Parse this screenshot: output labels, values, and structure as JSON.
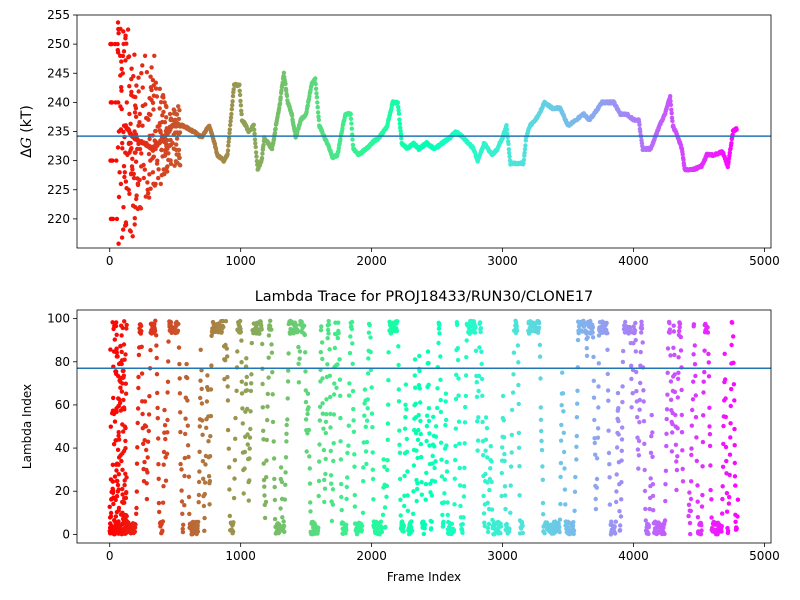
{
  "chart_data": [
    {
      "type": "scatter",
      "title": "",
      "xlabel": "",
      "ylabel": "ΔG (kT)",
      "ylabel_parts": {
        "delta": "Δ",
        "symbol": "G",
        "unit": " (kT)"
      },
      "xlim": [
        -250,
        5050
      ],
      "ylim": [
        215,
        255
      ],
      "xticks": [
        0,
        1000,
        2000,
        3000,
        4000,
        5000
      ],
      "yticks": [
        220,
        225,
        230,
        235,
        240,
        245,
        250,
        255
      ],
      "colormap": "rainbow (reversed: early frames red, late frames violet)",
      "hline": {
        "y": 234.2,
        "color": "#1f77b4"
      },
      "frame_range": [
        0,
        4800
      ],
      "series": [
        {
          "trace_points": [
            [
              0,
              230
            ],
            [
              60,
              230
            ],
            [
              70,
              240
            ],
            [
              100,
              240
            ],
            [
              120,
              236
            ],
            [
              180,
              234
            ],
            [
              260,
              233
            ],
            [
              330,
              232
            ],
            [
              420,
              234
            ],
            [
              480,
              236
            ],
            [
              560,
              236
            ],
            [
              640,
              235
            ],
            [
              700,
              234
            ],
            [
              760,
              236
            ],
            [
              800,
              233
            ],
            [
              820,
              231
            ],
            [
              870,
              230
            ],
            [
              900,
              231
            ],
            [
              920,
              236
            ],
            [
              950,
              243
            ],
            [
              990,
              243
            ],
            [
              1010,
              237
            ],
            [
              1040,
              236
            ],
            [
              1060,
              235
            ],
            [
              1100,
              236
            ],
            [
              1130,
              228.5
            ],
            [
              1160,
              230
            ],
            [
              1180,
              234
            ],
            [
              1210,
              233
            ],
            [
              1240,
              232
            ],
            [
              1270,
              236
            ],
            [
              1300,
              240
            ],
            [
              1330,
              245
            ],
            [
              1360,
              240
            ],
            [
              1390,
              238
            ],
            [
              1420,
              234
            ],
            [
              1460,
              237
            ],
            [
              1500,
              238
            ],
            [
              1540,
              243
            ],
            [
              1570,
              244
            ],
            [
              1600,
              236
            ],
            [
              1640,
              234
            ],
            [
              1680,
              232
            ],
            [
              1700,
              230.5
            ],
            [
              1740,
              231
            ],
            [
              1780,
              236
            ],
            [
              1800,
              238
            ],
            [
              1840,
              238
            ],
            [
              1860,
              232
            ],
            [
              1900,
              231
            ],
            [
              1960,
              232
            ],
            [
              2000,
              233
            ],
            [
              2060,
              234
            ],
            [
              2120,
              236
            ],
            [
              2160,
              240
            ],
            [
              2200,
              240
            ],
            [
              2230,
              233
            ],
            [
              2270,
              232
            ],
            [
              2320,
              233
            ],
            [
              2360,
              232
            ],
            [
              2420,
              233
            ],
            [
              2480,
              232
            ],
            [
              2540,
              233
            ],
            [
              2600,
              234
            ],
            [
              2640,
              235
            ],
            [
              2700,
              234
            ],
            [
              2740,
              233
            ],
            [
              2780,
              232
            ],
            [
              2810,
              230
            ],
            [
              2860,
              233
            ],
            [
              2920,
              231
            ],
            [
              2960,
              232
            ],
            [
              3000,
              234
            ],
            [
              3030,
              236
            ],
            [
              3060,
              229.5
            ],
            [
              3110,
              229.5
            ],
            [
              3160,
              229.5
            ],
            [
              3180,
              234
            ],
            [
              3210,
              236
            ],
            [
              3250,
              237
            ],
            [
              3280,
              238
            ],
            [
              3320,
              240
            ],
            [
              3380,
              239
            ],
            [
              3440,
              239
            ],
            [
              3480,
              237
            ],
            [
              3500,
              236
            ],
            [
              3560,
              237
            ],
            [
              3620,
              238
            ],
            [
              3660,
              237
            ],
            [
              3700,
              238
            ],
            [
              3760,
              240
            ],
            [
              3800,
              240
            ],
            [
              3850,
              240
            ],
            [
              3900,
              238
            ],
            [
              3950,
              238
            ],
            [
              4000,
              237
            ],
            [
              4040,
              237
            ],
            [
              4070,
              232
            ],
            [
              4130,
              232
            ],
            [
              4200,
              236
            ],
            [
              4240,
              238
            ],
            [
              4280,
              241
            ],
            [
              4300,
              236
            ],
            [
              4340,
              234
            ],
            [
              4370,
              232
            ],
            [
              4390,
              228.5
            ],
            [
              4460,
              228.5
            ],
            [
              4520,
              229
            ],
            [
              4560,
              231
            ],
            [
              4620,
              231
            ],
            [
              4680,
              231.5
            ],
            [
              4720,
              229
            ],
            [
              4760,
              235
            ],
            [
              4790,
              235.5
            ]
          ],
          "early_scatter_points": [
            [
              5,
              250
            ],
            [
              10,
              250
            ],
            [
              15,
              250
            ],
            [
              8,
              240
            ],
            [
              12,
              240
            ],
            [
              18,
              240
            ],
            [
              6,
              230
            ],
            [
              14,
              230
            ],
            [
              20,
              230
            ],
            [
              9,
              220
            ],
            [
              16,
              220
            ],
            [
              25,
              220
            ],
            [
              40,
              250
            ],
            [
              45,
              240
            ],
            [
              50,
              230
            ],
            [
              55,
              220
            ],
            [
              60,
              250
            ],
            [
              65,
              240
            ],
            [
              70,
              235
            ],
            [
              75,
              228
            ],
            [
              80,
              248
            ],
            [
              85,
              226
            ],
            [
              90,
              242
            ],
            [
              95,
              233
            ],
            [
              100,
              245
            ],
            [
              105,
              222
            ],
            [
              110,
              236
            ],
            [
              115,
              228
            ],
            [
              120,
              251
            ],
            [
              125,
              219
            ],
            [
              130,
              240
            ],
            [
              135,
              231
            ],
            [
              140,
              252.5
            ],
            [
              145,
              225
            ],
            [
              150,
              238
            ],
            [
              155,
              218
            ],
            [
              160,
              233
            ],
            [
              165,
              244
            ],
            [
              170,
              229
            ],
            [
              175,
              217
            ],
            [
              180,
              241
            ],
            [
              185,
              227
            ],
            [
              190,
              235
            ],
            [
              195,
              222
            ],
            [
              200,
              239
            ],
            [
              205,
              224
            ],
            [
              210,
              232
            ],
            [
              215,
              226
            ],
            [
              220,
              236
            ],
            [
              230,
              222
            ],
            [
              240,
              229
            ],
            [
              250,
              236
            ],
            [
              260,
              227
            ],
            [
              270,
              248
            ],
            [
              280,
              233
            ],
            [
              290,
              225
            ],
            [
              300,
              238
            ],
            [
              310,
              230
            ],
            [
              320,
              246
            ],
            [
              330,
              228
            ],
            [
              340,
              248
            ],
            [
              350,
              232
            ],
            [
              360,
              241
            ],
            [
              370,
              227
            ],
            [
              380,
              236
            ],
            [
              390,
              226
            ],
            [
              400,
              234
            ],
            [
              420,
              240
            ],
            [
              440,
              229
            ],
            [
              460,
              238
            ],
            [
              480,
              233
            ],
            [
              500,
              237
            ],
            [
              520,
              231
            ],
            [
              540,
              236
            ]
          ]
        }
      ]
    },
    {
      "type": "scatter",
      "title": "Lambda Trace for PROJ18433/RUN30/CLONE17",
      "xlabel": "Frame Index",
      "ylabel": "Lambda Index",
      "xlim": [
        -250,
        5050
      ],
      "ylim": [
        -4,
        104
      ],
      "xticks": [
        0,
        1000,
        2000,
        3000,
        4000,
        5000
      ],
      "yticks": [
        0,
        20,
        40,
        60,
        80,
        100
      ],
      "colormap": "rainbow (reversed: early frames red, late frames violet)",
      "hline": {
        "y": 77,
        "color": "#1f77b4"
      },
      "frame_range": [
        0,
        4800
      ],
      "value_range": [
        0,
        99
      ],
      "gap_intervals": [
        [
          3155,
          3195
        ],
        [
          4380,
          4420
        ]
      ]
    }
  ]
}
